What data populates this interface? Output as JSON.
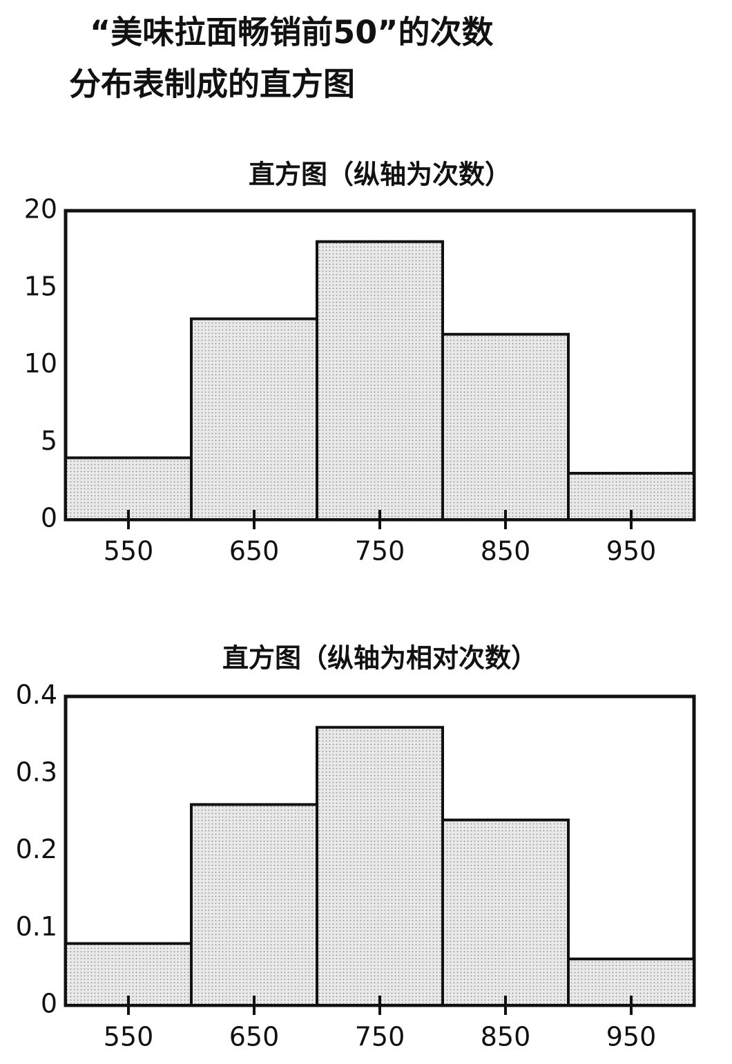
{
  "title": [
    "“美味拉面畅销前50”的次数",
    "分布表制成的直方图"
  ],
  "chart_data": [
    {
      "type": "histogram",
      "title": "直方图（纵轴为次数）",
      "bins": [
        500,
        600,
        700,
        800,
        900,
        1000
      ],
      "values": [
        4,
        13,
        18,
        12,
        3
      ],
      "xlim": [
        500,
        1000
      ],
      "xticks": [
        550,
        650,
        750,
        850,
        950
      ],
      "ylim": [
        0,
        20
      ],
      "yticks": [
        0,
        5,
        10,
        15,
        20
      ],
      "color": "#e6e6e6"
    },
    {
      "type": "histogram",
      "title": "直方图（纵轴为相对次数）",
      "bins": [
        500,
        600,
        700,
        800,
        900,
        1000
      ],
      "values": [
        0.08,
        0.26,
        0.36,
        0.24,
        0.06
      ],
      "xlim": [
        500,
        1000
      ],
      "xticks": [
        550,
        650,
        750,
        850,
        950
      ],
      "ylim": [
        0,
        0.4
      ],
      "yticks": [
        0,
        0.1,
        0.2,
        0.3,
        0.4
      ],
      "color": "#e6e6e6"
    }
  ]
}
